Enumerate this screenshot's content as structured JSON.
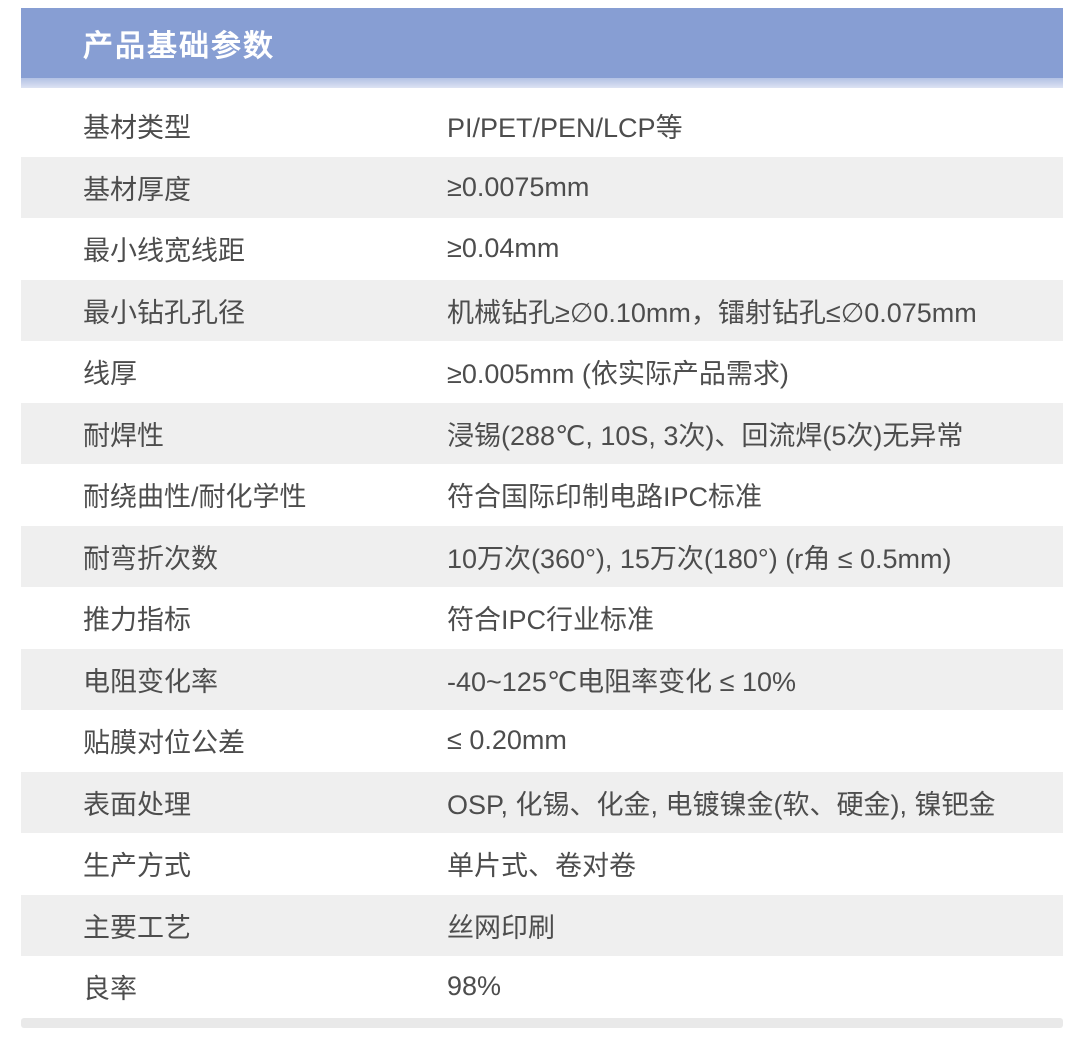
{
  "header": {
    "title": "产品基础参数"
  },
  "table": {
    "rows": [
      {
        "label": "基材类型",
        "value": "PI/PET/PEN/LCP等"
      },
      {
        "label": "基材厚度",
        "value": "≥0.0075mm"
      },
      {
        "label": "最小线宽线距",
        "value": "≥0.04mm"
      },
      {
        "label": "最小钻孔孔径",
        "value": "机械钻孔≥∅0.10mm，镭射钻孔≤∅0.075mm"
      },
      {
        "label": "线厚",
        "value": "≥0.005mm (依实际产品需求)"
      },
      {
        "label": "耐焊性",
        "value": "浸锡(288℃, 10S, 3次)、回流焊(5次)无异常"
      },
      {
        "label": "耐绕曲性/耐化学性",
        "value": "符合国际印制电路IPC标准"
      },
      {
        "label": "耐弯折次数",
        "value": "10万次(360°), 15万次(180°) (r角 ≤ 0.5mm)"
      },
      {
        "label": "推力指标",
        "value": "符合IPC行业标准"
      },
      {
        "label": "电阻变化率",
        "value": "-40~125℃电阻率变化 ≤ 10%"
      },
      {
        "label": "贴膜对位公差",
        "value": "≤ 0.20mm"
      },
      {
        "label": "表面处理",
        "value": "OSP, 化锡、化金, 电镀镍金(软、硬金), 镍钯金"
      },
      {
        "label": "生产方式",
        "value": "单片式、卷对卷"
      },
      {
        "label": "主要工艺",
        "value": "丝网印刷"
      },
      {
        "label": "良率",
        "value": "98%"
      }
    ]
  },
  "colors": {
    "header_bg": "#879ED3",
    "header_strip": "#c9d3ec",
    "stripe_row_bg": "#efefef",
    "text": "#4d4d4d",
    "header_text": "#ffffff"
  }
}
